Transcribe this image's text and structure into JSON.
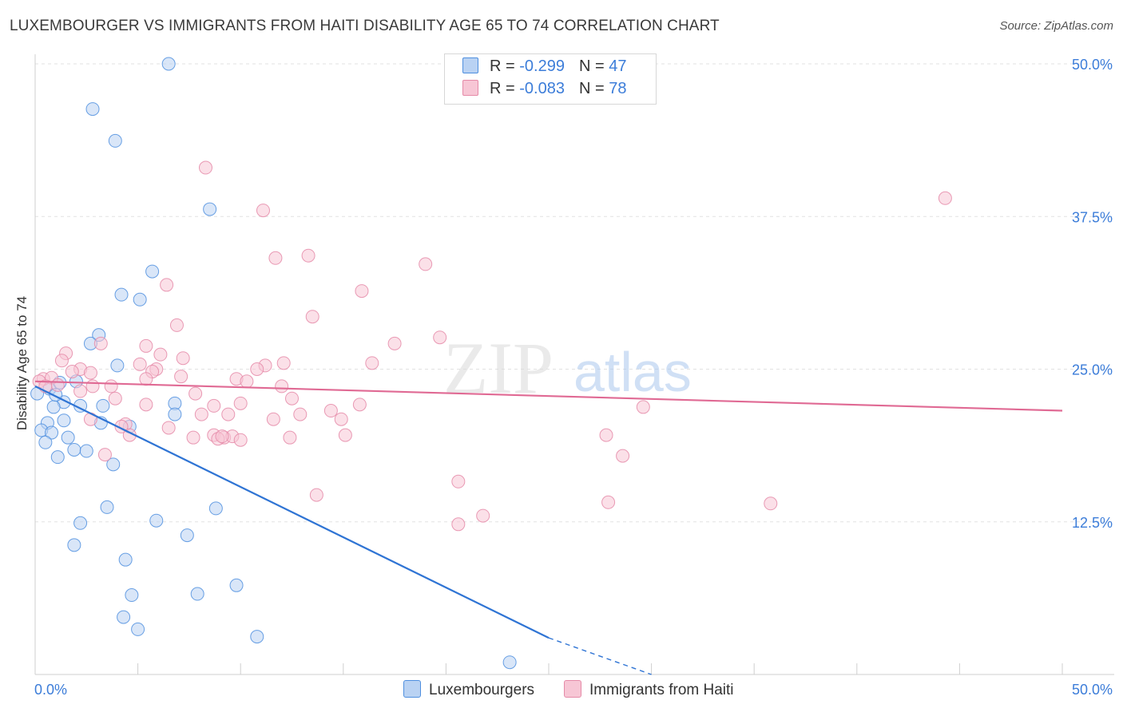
{
  "title": "LUXEMBOURGER VS IMMIGRANTS FROM HAITI DISABILITY AGE 65 TO 74 CORRELATION CHART",
  "source": "Source: ZipAtlas.com",
  "watermark": {
    "zip": "ZIP",
    "atlas": "atlas"
  },
  "legend": {
    "rows": [
      {
        "r_label": "R = ",
        "r_value": "-0.299",
        "n_label": "N = ",
        "n_value": "47",
        "color": "#4f8fdf",
        "fill": "#b9d2f3"
      },
      {
        "r_label": "R = ",
        "r_value": "-0.083",
        "n_label": "N = ",
        "n_value": "78",
        "color": "#e58aa8",
        "fill": "#f7c6d5"
      }
    ]
  },
  "chart_data": {
    "type": "scatter",
    "title": "LUXEMBOURGER VS IMMIGRANTS FROM HAITI DISABILITY AGE 65 TO 74 CORRELATION CHART",
    "xlabel": "",
    "ylabel": "Disability Age 65 to 74",
    "xlim": [
      0,
      50
    ],
    "ylim": [
      0,
      50
    ],
    "x_tick_labels": [
      "0.0%",
      "50.0%"
    ],
    "y_tick_labels": [
      "12.5%",
      "25.0%",
      "37.5%",
      "50.0%"
    ],
    "y_tick_values": [
      12.5,
      25.0,
      37.5,
      50.0
    ],
    "grid": "horizontal dashed",
    "series": [
      {
        "name": "Luxembourgers",
        "color": "#4f8fdf",
        "fill": "#b9d2f3",
        "trend": {
          "x1": 0,
          "y1": 23.6,
          "x2": 25,
          "y2": 3.0,
          "dash_to_x": 30,
          "dash_to_y": 0
        },
        "points": [
          [
            6.5,
            50.0
          ],
          [
            2.8,
            46.3
          ],
          [
            3.9,
            43.7
          ],
          [
            8.5,
            38.1
          ],
          [
            5.7,
            33.0
          ],
          [
            4.2,
            31.1
          ],
          [
            5.1,
            30.7
          ],
          [
            3.1,
            27.8
          ],
          [
            2.7,
            27.1
          ],
          [
            4.0,
            25.3
          ],
          [
            0.7,
            23.4
          ],
          [
            1.2,
            23.9
          ],
          [
            2.0,
            24.0
          ],
          [
            1.4,
            22.3
          ],
          [
            0.9,
            21.9
          ],
          [
            2.2,
            22.0
          ],
          [
            3.3,
            22.0
          ],
          [
            6.8,
            22.2
          ],
          [
            6.8,
            21.3
          ],
          [
            1.4,
            20.8
          ],
          [
            0.6,
            20.6
          ],
          [
            3.2,
            20.6
          ],
          [
            4.6,
            20.3
          ],
          [
            0.3,
            20.0
          ],
          [
            0.8,
            19.8
          ],
          [
            1.6,
            19.4
          ],
          [
            0.5,
            19.0
          ],
          [
            1.9,
            18.4
          ],
          [
            2.5,
            18.3
          ],
          [
            1.1,
            17.8
          ],
          [
            3.8,
            17.2
          ],
          [
            3.5,
            13.7
          ],
          [
            8.8,
            13.6
          ],
          [
            2.2,
            12.4
          ],
          [
            5.9,
            12.6
          ],
          [
            1.9,
            10.6
          ],
          [
            7.4,
            11.4
          ],
          [
            4.4,
            9.4
          ],
          [
            9.8,
            7.3
          ],
          [
            4.7,
            6.5
          ],
          [
            7.9,
            6.6
          ],
          [
            4.3,
            4.7
          ],
          [
            5.0,
            3.7
          ],
          [
            10.8,
            3.1
          ],
          [
            23.1,
            1.0
          ],
          [
            0.1,
            23.0
          ],
          [
            1.0,
            22.9
          ]
        ]
      },
      {
        "name": "Immigrants from Haiti",
        "color": "#e58aa8",
        "fill": "#f7c6d5",
        "trend": {
          "x1": 0,
          "y1": 24.0,
          "x2": 50,
          "y2": 21.6
        },
        "points": [
          [
            8.3,
            41.5
          ],
          [
            44.3,
            39.0
          ],
          [
            11.1,
            38.0
          ],
          [
            11.7,
            34.1
          ],
          [
            13.3,
            34.3
          ],
          [
            19.0,
            33.6
          ],
          [
            6.4,
            31.9
          ],
          [
            15.9,
            31.4
          ],
          [
            13.5,
            29.3
          ],
          [
            6.9,
            28.6
          ],
          [
            19.7,
            27.6
          ],
          [
            3.2,
            27.1
          ],
          [
            5.4,
            26.9
          ],
          [
            17.5,
            27.1
          ],
          [
            1.5,
            26.3
          ],
          [
            6.1,
            26.2
          ],
          [
            7.2,
            25.9
          ],
          [
            1.3,
            25.7
          ],
          [
            12.1,
            25.5
          ],
          [
            16.4,
            25.5
          ],
          [
            5.1,
            25.4
          ],
          [
            11.2,
            25.3
          ],
          [
            2.2,
            25.0
          ],
          [
            5.9,
            25.0
          ],
          [
            10.8,
            25.0
          ],
          [
            1.8,
            24.8
          ],
          [
            2.7,
            24.7
          ],
          [
            5.7,
            24.8
          ],
          [
            7.1,
            24.4
          ],
          [
            0.4,
            24.2
          ],
          [
            0.8,
            24.3
          ],
          [
            9.8,
            24.2
          ],
          [
            10.3,
            24.0
          ],
          [
            5.4,
            24.2
          ],
          [
            1.1,
            23.7
          ],
          [
            2.8,
            23.6
          ],
          [
            3.7,
            23.6
          ],
          [
            12.0,
            23.6
          ],
          [
            7.8,
            23.0
          ],
          [
            12.5,
            22.6
          ],
          [
            3.9,
            22.6
          ],
          [
            5.4,
            22.1
          ],
          [
            8.7,
            22.0
          ],
          [
            10.0,
            22.2
          ],
          [
            15.8,
            22.1
          ],
          [
            29.6,
            21.9
          ],
          [
            14.4,
            21.6
          ],
          [
            8.1,
            21.3
          ],
          [
            9.4,
            21.3
          ],
          [
            12.9,
            21.3
          ],
          [
            11.6,
            20.9
          ],
          [
            14.9,
            20.9
          ],
          [
            2.7,
            20.9
          ],
          [
            4.4,
            20.5
          ],
          [
            6.5,
            20.2
          ],
          [
            4.2,
            20.3
          ],
          [
            7.7,
            19.4
          ],
          [
            8.7,
            19.6
          ],
          [
            9.2,
            19.4
          ],
          [
            9.6,
            19.5
          ],
          [
            10.0,
            19.2
          ],
          [
            12.4,
            19.4
          ],
          [
            15.1,
            19.6
          ],
          [
            27.8,
            19.6
          ],
          [
            4.6,
            19.6
          ],
          [
            3.4,
            18.0
          ],
          [
            28.6,
            17.9
          ],
          [
            20.6,
            15.8
          ],
          [
            13.7,
            14.7
          ],
          [
            21.8,
            13.0
          ],
          [
            20.6,
            12.3
          ],
          [
            27.9,
            14.1
          ],
          [
            35.8,
            14.0
          ],
          [
            0.2,
            24.0
          ],
          [
            0.5,
            23.6
          ],
          [
            2.2,
            23.2
          ],
          [
            8.9,
            19.3
          ],
          [
            9.1,
            19.5
          ]
        ]
      }
    ]
  },
  "bottom_legend": {
    "items": [
      {
        "label": "Luxembourgers",
        "color": "#4f8fdf",
        "fill": "#b9d2f3"
      },
      {
        "label": "Immigrants from Haiti",
        "color": "#e58aa8",
        "fill": "#f7c6d5"
      }
    ]
  }
}
